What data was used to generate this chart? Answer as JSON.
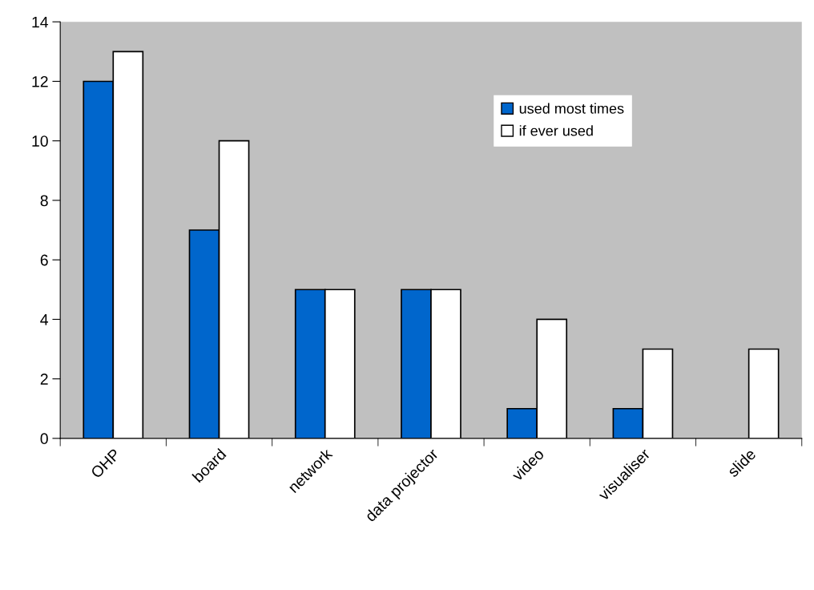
{
  "chart_data": {
    "type": "bar",
    "categories": [
      "OHP",
      "board",
      "network",
      "data projector",
      "video",
      "visualiser",
      "slide"
    ],
    "series": [
      {
        "name": "used most times",
        "color": "#0066cc",
        "values": [
          12,
          7,
          5,
          5,
          1,
          1,
          null
        ]
      },
      {
        "name": "if ever used",
        "color": "#ffffff",
        "values": [
          13,
          10,
          5,
          5,
          4,
          3,
          3
        ]
      }
    ],
    "ylim": [
      0,
      14
    ],
    "yticks": [
      0,
      2,
      4,
      6,
      8,
      10,
      12,
      14
    ],
    "grid": false,
    "legend": "top right"
  }
}
